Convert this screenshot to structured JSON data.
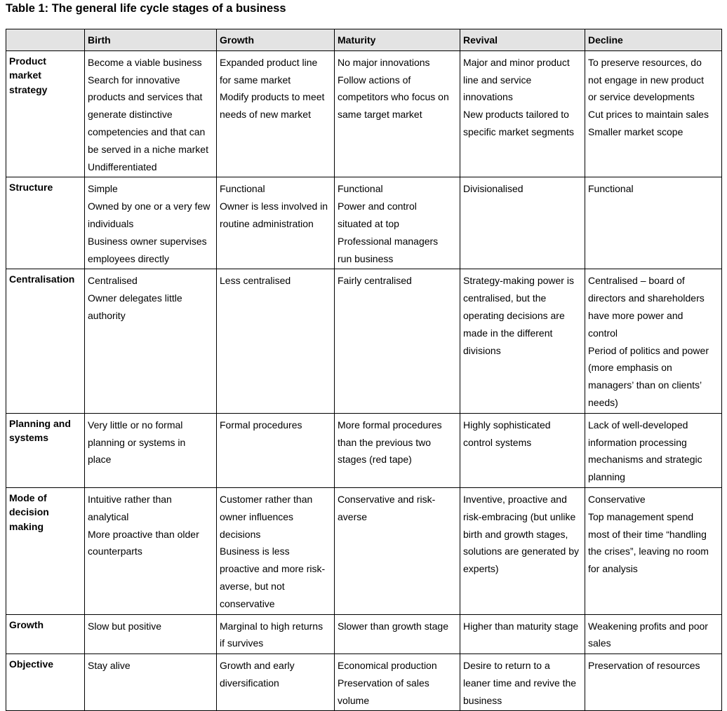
{
  "title": "Table 1:  The general life cycle stages of a business",
  "columns": [
    "",
    "Birth",
    "Growth",
    "Maturity",
    "Revival",
    "Decline"
  ],
  "rows": [
    {
      "label": [
        "Product",
        "market",
        "strategy"
      ],
      "cells": [
        [
          "Become a viable business",
          "Search for innovative",
          "products and services that",
          "generate distinctive",
          "competencies and that can",
          "be served in a niche market",
          "Undifferentiated"
        ],
        [
          "Expanded product line",
          "for same market",
          "Modify products to meet",
          "needs of new market"
        ],
        [
          "No major innovations",
          "Follow actions of",
          "competitors who focus on",
          "same target market"
        ],
        [
          "Major and minor product",
          "line and service",
          "innovations",
          "New products tailored to",
          "specific market segments"
        ],
        [
          "To preserve resources, do",
          "not engage in new product",
          "or service developments",
          "Cut prices to maintain sales",
          "Smaller market scope"
        ]
      ]
    },
    {
      "label": [
        "Structure"
      ],
      "cells": [
        [
          "Simple",
          "Owned by one or a very few",
          "individuals",
          "Business owner supervises",
          "employees directly"
        ],
        [
          "Functional",
          "Owner is less involved in",
          "routine administration"
        ],
        [
          "Functional",
          "Power and control",
          "situated at top",
          "Professional managers",
          "run business"
        ],
        [
          "Divisionalised"
        ],
        [
          "Functional"
        ]
      ]
    },
    {
      "label": [
        "Centralisation"
      ],
      "cells": [
        [
          "Centralised",
          "Owner delegates little",
          "authority"
        ],
        [
          "Less centralised"
        ],
        [
          "Fairly centralised"
        ],
        [
          "Strategy-making power is",
          "centralised, but the",
          "operating decisions are",
          "made in the different",
          "divisions"
        ],
        [
          "Centralised – board of",
          "directors and shareholders",
          "have more power and",
          "control",
          "Period of politics and power",
          "(more emphasis on",
          "managers’ than on clients’",
          "needs)"
        ]
      ]
    },
    {
      "label": [
        "Planning and",
        "systems"
      ],
      "cells": [
        [
          "Very little or no formal",
          "planning or systems in",
          "place"
        ],
        [
          "Formal procedures"
        ],
        [
          "More formal procedures",
          "than the previous two",
          "stages (red tape)"
        ],
        [
          "Highly sophisticated",
          "control systems"
        ],
        [
          "Lack of well-developed",
          "information processing",
          "mechanisms and strategic",
          "planning"
        ]
      ]
    },
    {
      "label": [
        "Mode of",
        "decision",
        "making"
      ],
      "cells": [
        [
          "Intuitive rather than",
          "analytical",
          "More proactive than older",
          "counterparts"
        ],
        [
          "Customer rather than",
          "owner influences",
          "decisions",
          "Business is less",
          "proactive and more risk-",
          "averse, but not",
          "conservative"
        ],
        [
          "Conservative and risk-",
          "averse"
        ],
        [
          "Inventive, proactive and",
          "risk-embracing (but unlike",
          "birth and growth stages,",
          "solutions are generated by",
          "experts)"
        ],
        [
          "Conservative",
          "Top management spend",
          "most of their time “handling",
          "the crises”, leaving no room",
          "for analysis"
        ]
      ]
    },
    {
      "label": [
        "Growth"
      ],
      "cells": [
        [
          "Slow but positive"
        ],
        [
          "Marginal to high returns",
          "if survives"
        ],
        [
          "Slower than growth stage"
        ],
        [
          "Higher than maturity stage"
        ],
        [
          "Weakening profits and poor",
          "sales"
        ]
      ]
    },
    {
      "label": [
        "Objective"
      ],
      "cells": [
        [
          "Stay alive"
        ],
        [
          "Growth and early",
          "diversification"
        ],
        [
          "Economical production",
          "Preservation of sales",
          "volume"
        ],
        [
          "Desire to return to a",
          "leaner time and revive the",
          "business"
        ],
        [
          "Preservation of resources"
        ]
      ]
    }
  ]
}
